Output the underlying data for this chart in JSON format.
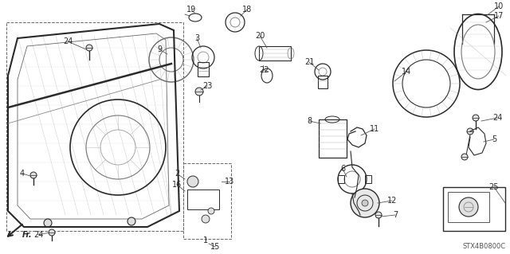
{
  "bg_color": "#ffffff",
  "line_color": "#2a2a2a",
  "gray_color": "#888888",
  "diagram_code": "STX4B0800C",
  "figsize": [
    6.4,
    3.19
  ],
  "dpi": 100
}
